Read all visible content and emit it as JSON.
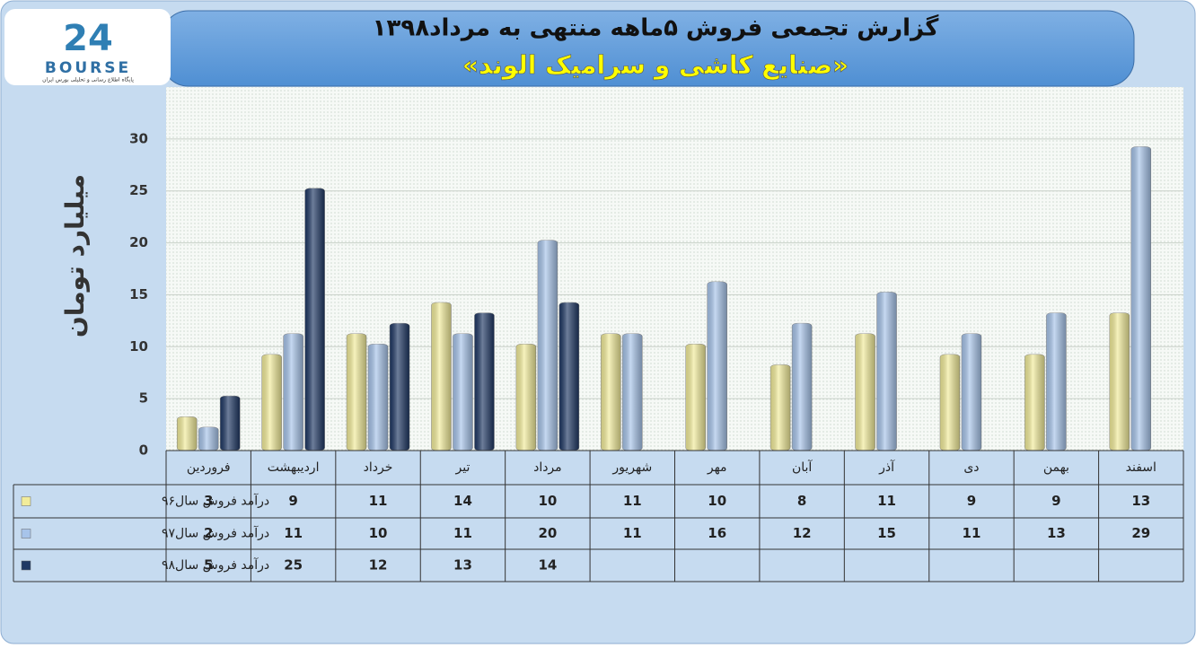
{
  "logo": {
    "mark": "24",
    "name": "BOURSE",
    "tagline": "پایگاه اطلاع رسانی و تحلیلی بورس ایران"
  },
  "chart_data": {
    "type": "bar",
    "title": "گزارش تجمعی فروش ۵ماهه منتهی به مرداد۱۳۹۸",
    "subtitle": "«صنایع کاشی و سرامیک الوند»",
    "y_label": "میلیارد تومان",
    "categories": [
      "فروردین",
      "اردیبهشت",
      "خرداد",
      "تیر",
      "مرداد",
      "شهریور",
      "مهر",
      "آبان",
      "آذر",
      "دی",
      "بهمن",
      "اسفند"
    ],
    "series": [
      {
        "name": "درآمد فروش سال۹۶",
        "color": "#f2ec9a",
        "values": [
          3,
          9,
          11,
          14,
          10,
          11,
          10,
          8,
          11,
          9,
          9,
          13
        ]
      },
      {
        "name": "درآمد فروش سال۹۷",
        "color": "#a7c4ea",
        "values": [
          2,
          11,
          10,
          11,
          20,
          11,
          16,
          12,
          15,
          11,
          13,
          29
        ]
      },
      {
        "name": "درآمد فروش سال۹۸",
        "color": "#1f3864",
        "values": [
          5,
          25,
          12,
          13,
          14,
          null,
          null,
          null,
          null,
          null,
          null,
          null
        ]
      }
    ],
    "ylim": [
      0,
      35
    ],
    "yticks": [
      0,
      5,
      10,
      15,
      20,
      25,
      30
    ],
    "grid": true,
    "data_table": true
  }
}
